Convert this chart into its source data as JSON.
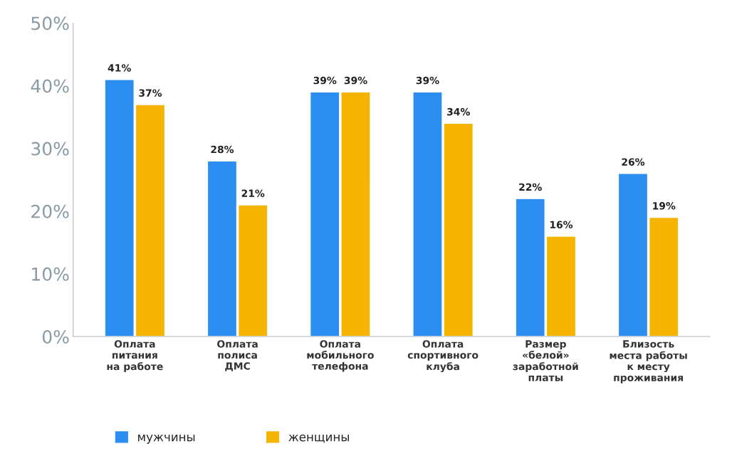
{
  "chart_data": {
    "type": "bar",
    "categories": [
      "Оплата\nпитания\nна работе",
      "Оплата\nполиса\nДМС",
      "Оплата\nмобильного\nтелефона",
      "Оплата\nспортивного\nклуба",
      "Размер\n«белой»\nзаработной\nплаты",
      "Близость\nместа работы\nк месту\nпроживания"
    ],
    "series": [
      {
        "name": "мужчины",
        "color": "#2b8ef0",
        "values": [
          41,
          28,
          39,
          39,
          22,
          26
        ]
      },
      {
        "name": "женщины",
        "color": "#f5b400",
        "values": [
          37,
          21,
          39,
          34,
          16,
          19
        ]
      }
    ],
    "ylim": [
      0,
      50
    ],
    "yticks": [
      {
        "value": 0,
        "label": "0%"
      },
      {
        "value": 10,
        "label": "10%"
      },
      {
        "value": 20,
        "label": "20%"
      },
      {
        "value": 30,
        "label": "30%"
      },
      {
        "value": 40,
        "label": "40%"
      },
      {
        "value": 50,
        "label": "50%"
      }
    ],
    "value_labels": [
      [
        "41%",
        "28%",
        "39%",
        "39%",
        "22%",
        "26%"
      ],
      [
        "37%",
        "21%",
        "39%",
        "34%",
        "16%",
        "19%"
      ]
    ],
    "legend": "bottom",
    "grid": false
  }
}
